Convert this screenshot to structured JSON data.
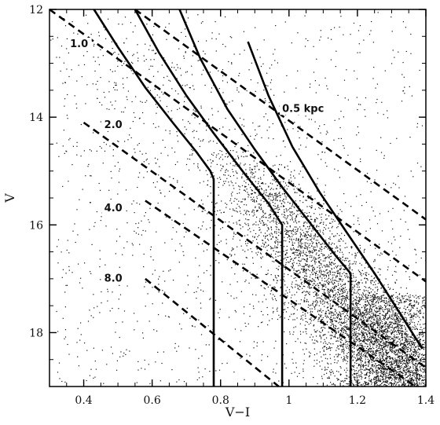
{
  "chart_data": {
    "type": "scatter",
    "xlabel": "V−I",
    "ylabel": "V",
    "xlim": [
      0.3,
      1.4
    ],
    "ylim": [
      19,
      12
    ],
    "y_inverted": true,
    "x_ticks": [
      0.4,
      0.6,
      0.8,
      1.0,
      1.2,
      1.4
    ],
    "x_tick_labels": [
      "0.4",
      "0.6",
      "0.8",
      "1",
      "1.2",
      "1.4"
    ],
    "y_ticks": [
      12,
      14,
      16,
      18
    ],
    "y_tick_labels": [
      "12",
      "14",
      "16",
      "18"
    ],
    "grid": false,
    "colors": {
      "points": "#111111",
      "lines": "#000000",
      "frame": "#000000"
    },
    "dashed_lines": [
      {
        "label": "0.5 kpc",
        "points": [
          [
            0.55,
            12.0
          ],
          [
            1.4,
            15.9
          ]
        ]
      },
      {
        "label": "1.0",
        "points": [
          [
            0.3,
            12.0
          ],
          [
            1.4,
            17.05
          ]
        ]
      },
      {
        "label": "2.0",
        "points": [
          [
            0.4,
            14.1
          ],
          [
            1.4,
            18.65
          ]
        ]
      },
      {
        "label": "4.0",
        "points": [
          [
            0.58,
            15.55
          ],
          [
            1.37,
            19.0
          ]
        ]
      },
      {
        "label": "8.0",
        "points": [
          [
            0.58,
            17.0
          ],
          [
            0.97,
            19.0
          ]
        ]
      }
    ],
    "dashed_line_labels": [
      {
        "text": "0.5 kpc",
        "x": 0.98,
        "y": 13.9
      },
      {
        "text": "1.0",
        "x": 0.36,
        "y": 12.7
      },
      {
        "text": "2.0",
        "x": 0.46,
        "y": 14.2
      },
      {
        "text": "4.0",
        "x": 0.46,
        "y": 15.75
      },
      {
        "text": "8.0",
        "x": 0.46,
        "y": 17.05
      }
    ],
    "solid_lines": [
      {
        "points": [
          [
            0.43,
            12.0
          ],
          [
            0.5,
            12.7
          ],
          [
            0.58,
            13.45
          ],
          [
            0.66,
            14.1
          ],
          [
            0.73,
            14.65
          ],
          [
            0.77,
            15.0
          ],
          [
            0.78,
            15.15
          ],
          [
            0.78,
            19.0
          ]
        ]
      },
      {
        "points": [
          [
            0.55,
            12.0
          ],
          [
            0.62,
            12.8
          ],
          [
            0.7,
            13.6
          ],
          [
            0.78,
            14.3
          ],
          [
            0.87,
            15.05
          ],
          [
            0.94,
            15.6
          ],
          [
            0.98,
            16.0
          ],
          [
            0.98,
            19.0
          ]
        ]
      },
      {
        "points": [
          [
            0.68,
            12.0
          ],
          [
            0.74,
            12.9
          ],
          [
            0.82,
            13.85
          ],
          [
            0.9,
            14.6
          ],
          [
            0.98,
            15.3
          ],
          [
            1.06,
            15.95
          ],
          [
            1.14,
            16.6
          ],
          [
            1.18,
            16.9
          ],
          [
            1.18,
            19.0
          ]
        ]
      },
      {
        "points": [
          [
            0.88,
            12.6
          ],
          [
            0.94,
            13.6
          ],
          [
            1.01,
            14.55
          ],
          [
            1.09,
            15.4
          ],
          [
            1.17,
            16.15
          ],
          [
            1.25,
            16.9
          ],
          [
            1.32,
            17.6
          ],
          [
            1.39,
            18.3
          ]
        ]
      }
    ]
  }
}
